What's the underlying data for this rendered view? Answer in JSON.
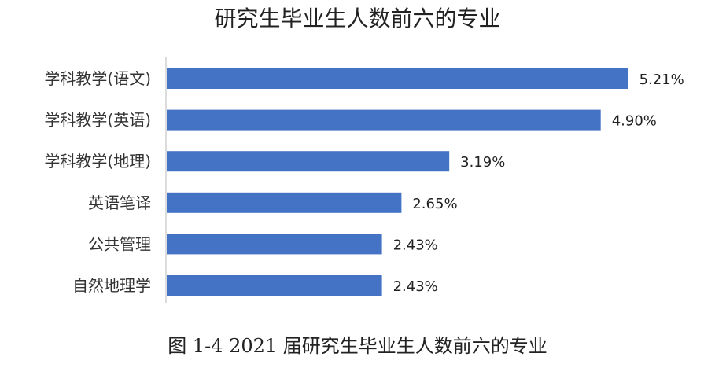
{
  "chart_data": {
    "type": "bar",
    "orientation": "horizontal",
    "title": "研究生毕业生人数前六的专业",
    "caption": "图 1-4 2021 届研究生毕业生人数前六的专业",
    "categories": [
      "学科教学(语文)",
      "学科教学(英语)",
      "学科教学(地理)",
      "英语笔译",
      "公共管理",
      "自然地理学"
    ],
    "values": [
      5.21,
      4.9,
      3.19,
      2.65,
      2.43,
      2.43
    ],
    "value_labels": [
      "5.21%",
      "4.90%",
      "3.19%",
      "2.65%",
      "2.43%",
      "2.43%"
    ],
    "xlim": [
      0,
      5.4
    ],
    "color": "#4472C4",
    "grid": false,
    "legend": "none"
  }
}
